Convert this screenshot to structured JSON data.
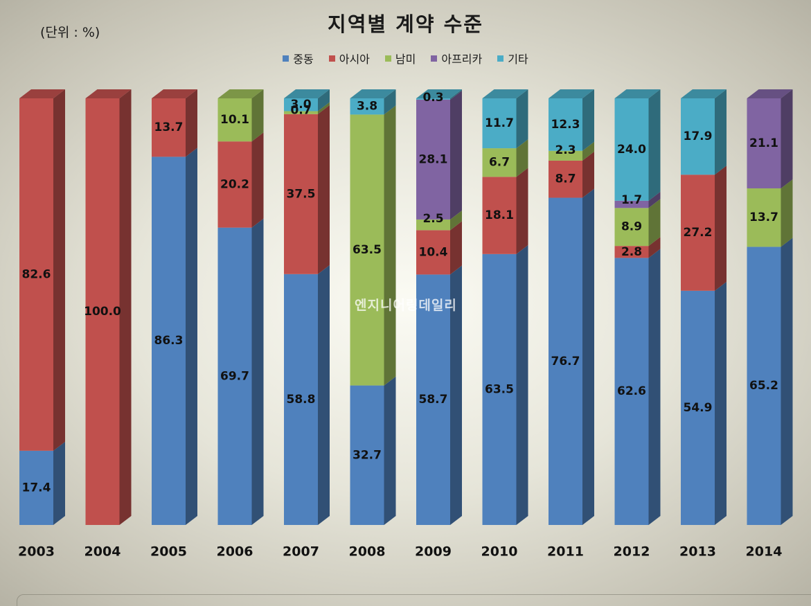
{
  "title": "지역별 계약 수준",
  "unit_label": "(단위 : %)",
  "watermark": "엔지니어링데일리",
  "legend": [
    {
      "name": "중동",
      "color": "#4f81bd"
    },
    {
      "name": "아시아",
      "color": "#c0504d"
    },
    {
      "name": "남미",
      "color": "#9bbb59"
    },
    {
      "name": "아프리카",
      "color": "#8064a2"
    },
    {
      "name": "기타",
      "color": "#4bacc6"
    }
  ],
  "chart_data": {
    "type": "bar",
    "stacked": true,
    "percent_stacked": true,
    "three_d": true,
    "title": "지역별 계약 수준",
    "unit": "(단위 : %)",
    "legend_position": "top",
    "grid": false,
    "ylim": [
      0,
      100
    ],
    "categories": [
      "2003",
      "2004",
      "2005",
      "2006",
      "2007",
      "2008",
      "2009",
      "2010",
      "2011",
      "2012",
      "2013",
      "2014"
    ],
    "series": [
      {
        "name": "중동",
        "color": "#4f81bd",
        "values": [
          17.4,
          null,
          86.3,
          69.7,
          58.8,
          32.7,
          58.7,
          63.5,
          76.7,
          62.6,
          54.9,
          65.2
        ]
      },
      {
        "name": "아시아",
        "color": "#c0504d",
        "values": [
          82.6,
          100.0,
          13.7,
          20.2,
          37.5,
          null,
          10.4,
          18.1,
          8.7,
          2.8,
          27.2,
          null
        ]
      },
      {
        "name": "남미",
        "color": "#9bbb59",
        "values": [
          null,
          null,
          null,
          10.1,
          0.7,
          63.5,
          2.5,
          6.7,
          2.3,
          8.9,
          null,
          13.7
        ]
      },
      {
        "name": "아프리카",
        "color": "#8064a2",
        "values": [
          null,
          null,
          null,
          null,
          null,
          null,
          28.1,
          null,
          null,
          1.7,
          null,
          21.1
        ]
      },
      {
        "name": "기타",
        "color": "#4bacc6",
        "values": [
          null,
          null,
          null,
          null,
          3.0,
          3.8,
          0.3,
          11.7,
          12.3,
          24.0,
          17.9,
          null
        ]
      }
    ],
    "labels": [
      [
        "17.4",
        "",
        "86.3",
        "69.7",
        "58.8",
        "32.7",
        "58.7",
        "63.5",
        "76.7",
        "62.6",
        "54.9",
        "65.2"
      ],
      [
        "82.6",
        "100.0",
        "13.7",
        "20.2",
        "37.5",
        "",
        "10.4",
        "18.1",
        "8.7",
        "2.8",
        "27.2",
        ""
      ],
      [
        "",
        "",
        "",
        "10.1",
        "0.7",
        "63.5",
        "2.5",
        "6.7",
        "2.3",
        "8.9",
        "",
        "13.7"
      ],
      [
        "",
        "",
        "",
        "",
        "",
        "",
        "28.1",
        "",
        "",
        "1.7",
        "",
        "21.1"
      ],
      [
        "",
        "",
        "",
        "",
        "3.0",
        "3.8",
        "0.3",
        "11.7",
        "12.3",
        "24.0",
        "17.9",
        ""
      ]
    ]
  }
}
